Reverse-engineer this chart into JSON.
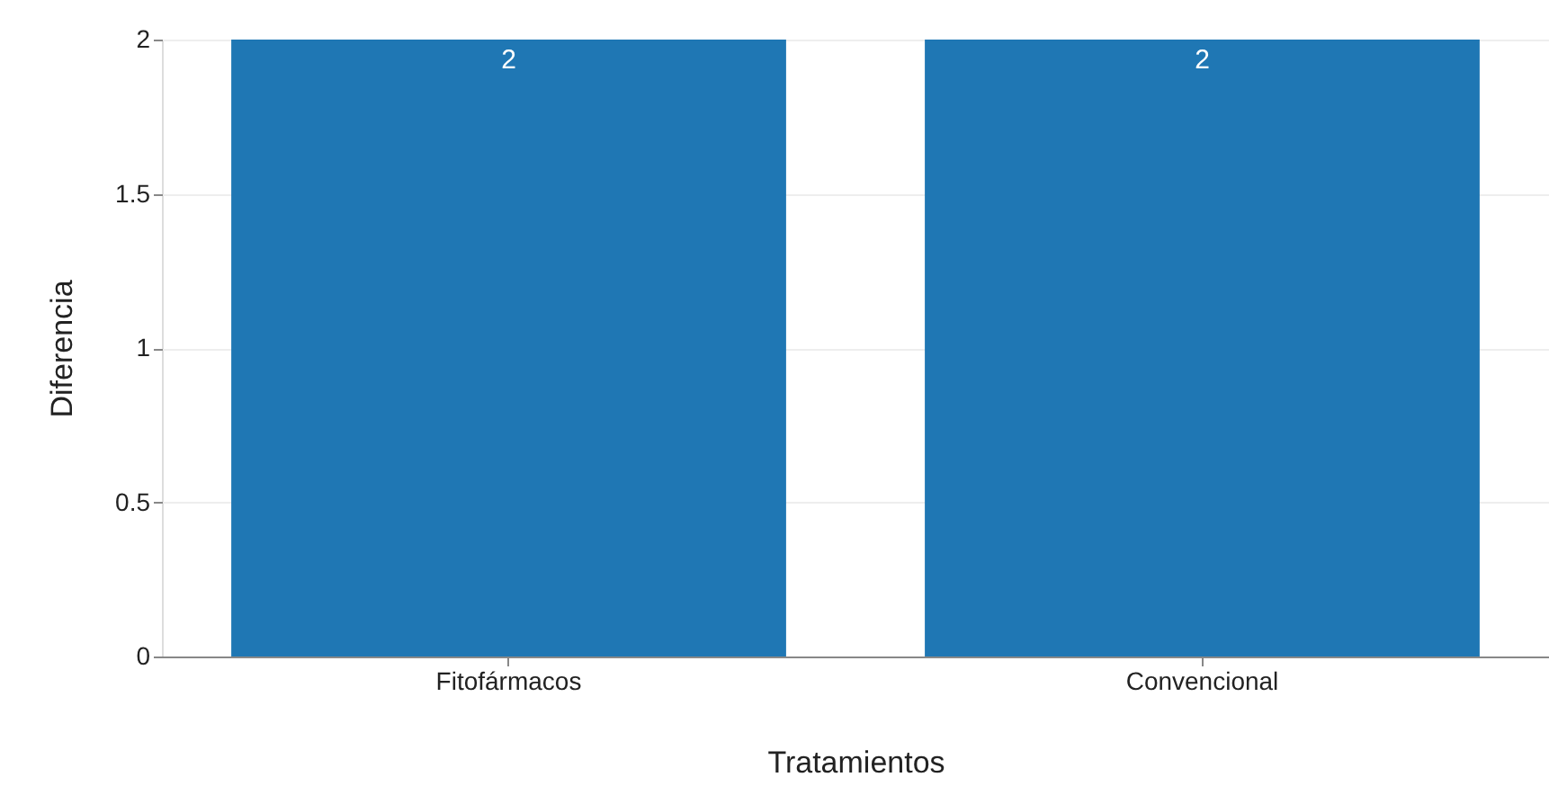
{
  "chart_data": {
    "type": "bar",
    "xlabel": "Tratamientos",
    "ylabel": "Diferencia",
    "categories": [
      "Fitofármacos",
      "Convencional"
    ],
    "values": [
      2,
      2
    ],
    "color": "#1f77b4",
    "ylim": [
      0,
      2
    ],
    "yticks": [
      0,
      0.5,
      1,
      1.5,
      2
    ],
    "grid": "y",
    "data_labels": true
  }
}
